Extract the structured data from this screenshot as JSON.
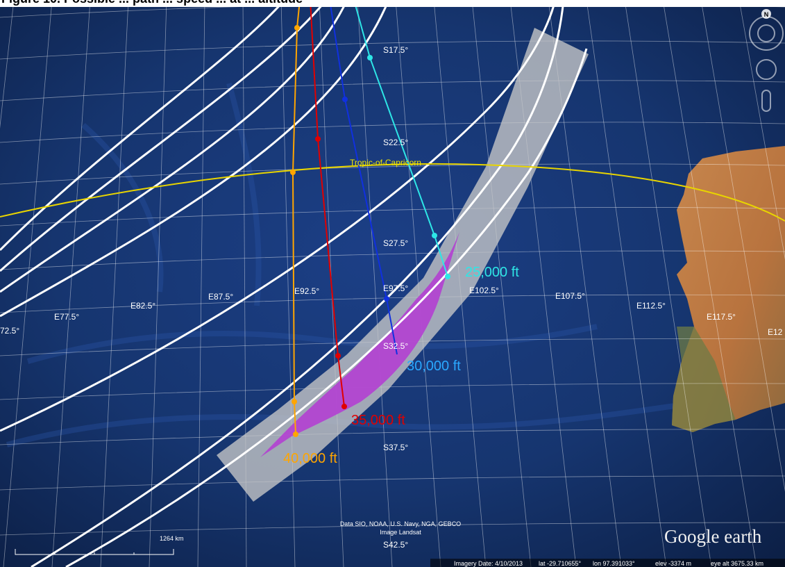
{
  "header": {
    "partial_text": "Figure 10. Possible ... path ... speed ... at ... altitude"
  },
  "map": {
    "latitude_labels": [
      "S17.5°",
      "S22.5°",
      "S27.5°",
      "S32.5°",
      "S37.5°",
      "S42.5°"
    ],
    "longitude_labels": [
      "72.5°",
      "E77.5°",
      "E82.5°",
      "E87.5°",
      "E92.5°",
      "E97.5°",
      "E102.5°",
      "E107.5°",
      "E112.5°",
      "E117.5°",
      "E12"
    ],
    "tropic_label": "Tropic-of-Capricorn",
    "altitude_labels": {
      "a25000": "25,000 ft",
      "a30000": "30,000 ft",
      "a35000": "35,000 ft",
      "a40000": "40,000 ft"
    },
    "altitude_colors": {
      "a25000": "#2ee6e6",
      "a30000": "#1e90ff",
      "a35000": "#e00000",
      "a40000": "#ffa500"
    },
    "scale_label": "1264 km",
    "attribution_line1": "Data SIO, NOAA, U.S. Navy, NGA, GEBCO",
    "attribution_line2": "Image Landsat",
    "brand": "Google earth",
    "status": {
      "imagery_date": "Imagery Date: 4/10/2013",
      "lat": "lat -29.710655°",
      "lon": "lon 97.391033°",
      "elev": "elev -3374 m",
      "eye_alt": "eye alt 3675.33 km"
    },
    "compass_letter": "N"
  }
}
